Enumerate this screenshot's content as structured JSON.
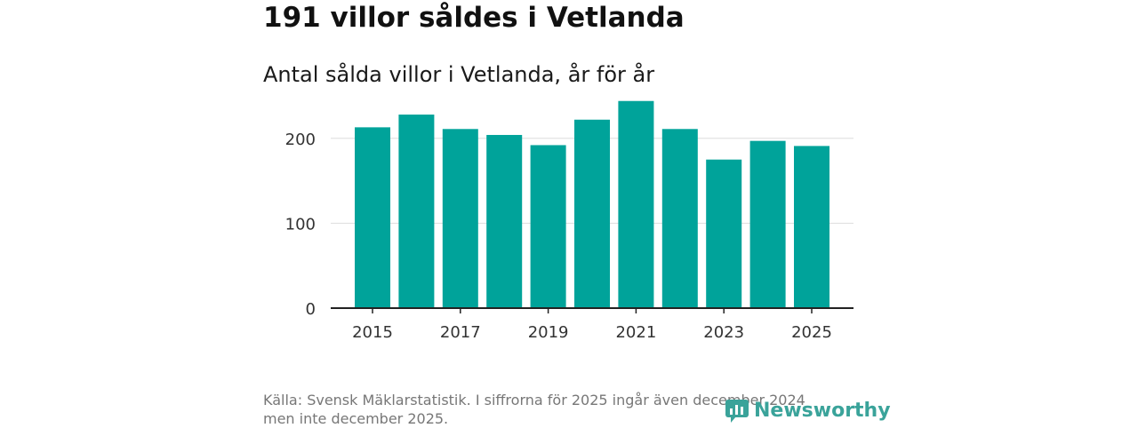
{
  "header": {
    "title": "191 villor såldes i Vetlanda",
    "subtitle": "Antal sålda villor i Vetlanda, år för år"
  },
  "chart_data": {
    "type": "bar",
    "categories": [
      "2015",
      "2016",
      "2017",
      "2018",
      "2019",
      "2020",
      "2021",
      "2022",
      "2023",
      "2024",
      "2025"
    ],
    "values": [
      213,
      228,
      211,
      204,
      192,
      222,
      244,
      211,
      175,
      197,
      191
    ],
    "x_tick_labels": [
      "2015",
      "2017",
      "2019",
      "2021",
      "2023",
      "2025"
    ],
    "y_ticks": [
      0,
      100,
      200
    ],
    "ylim": [
      0,
      250
    ],
    "grid": true,
    "bar_color": "#00a39a",
    "title": "191 villor såldes i Vetlanda",
    "subtitle": "Antal sålda villor i Vetlanda, år för år",
    "xlabel": "",
    "ylabel": ""
  },
  "footer": {
    "source_line1": "Källa: Svensk Mäklarstatistik. I siffrorna för 2025 ingår även december 2024",
    "source_line2": "men inte december 2025.",
    "brand": "Newsworthy",
    "brand_color": "#3aa39a"
  }
}
